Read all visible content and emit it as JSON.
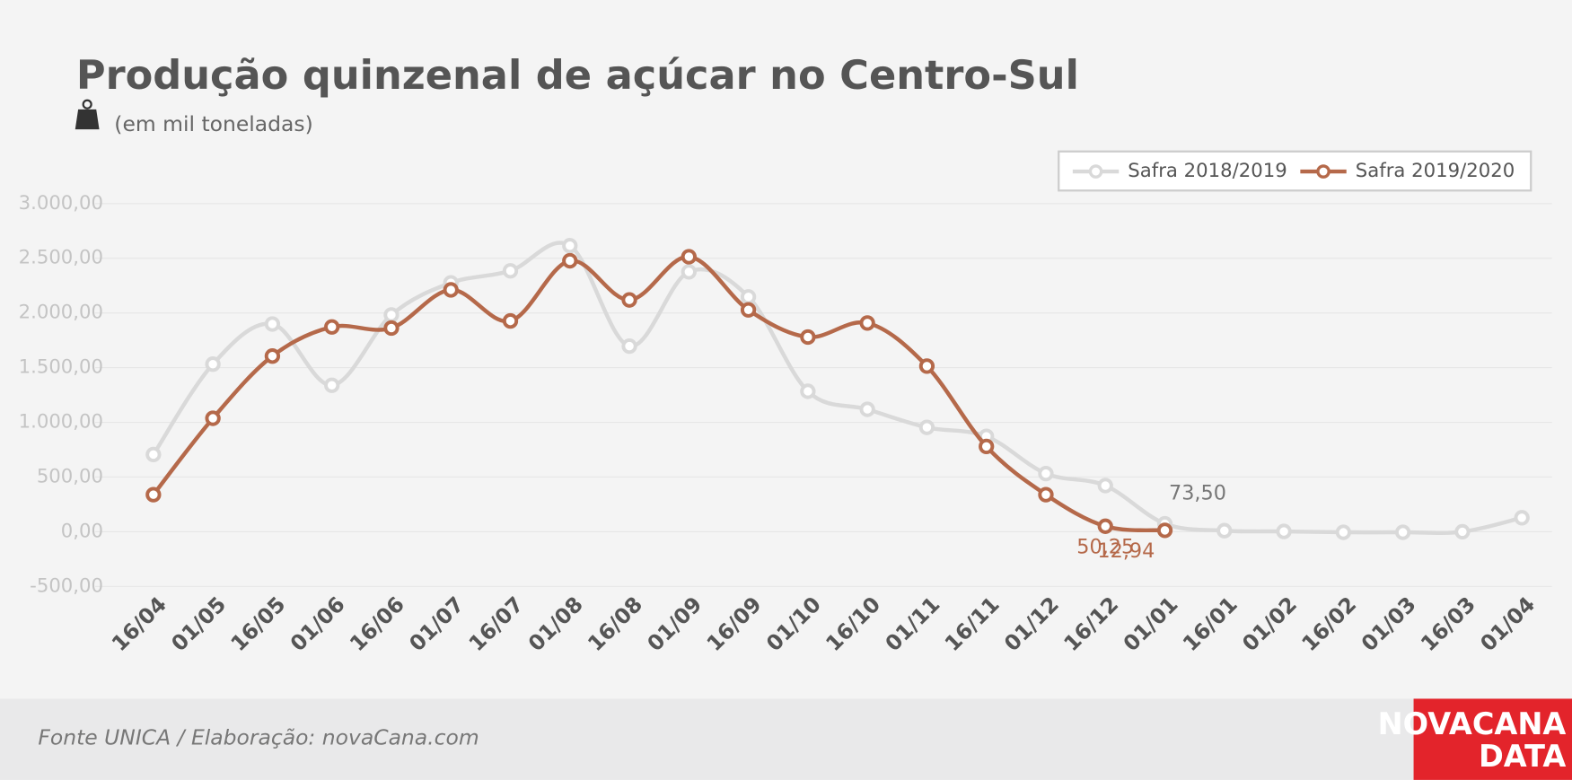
{
  "chart_data": {
    "type": "line",
    "title": "Produção quinzenal de açúcar no Centro-Sul",
    "subtitle": "(em mil toneladas)",
    "categories": [
      "16/04",
      "01/05",
      "16/05",
      "01/06",
      "16/06",
      "01/07",
      "16/07",
      "01/08",
      "16/08",
      "01/09",
      "16/09",
      "01/10",
      "16/10",
      "01/11",
      "16/11",
      "01/12",
      "16/12",
      "01/01",
      "16/01",
      "01/02",
      "16/02",
      "01/03",
      "16/03",
      "01/04"
    ],
    "series": [
      {
        "name": "Safra 2018/2019",
        "color": "#d9d9d9",
        "values": [
          706,
          1532,
          1899,
          1339,
          1982,
          2275,
          2385,
          2615,
          1697,
          2376,
          2147,
          1284,
          1119,
          954,
          872,
          532,
          422,
          73.5,
          10,
          3,
          -5,
          -5,
          0,
          128
        ],
        "value_labels": [
          null,
          null,
          null,
          null,
          null,
          null,
          null,
          null,
          null,
          null,
          null,
          null,
          null,
          null,
          null,
          null,
          null,
          "73,50",
          null,
          null,
          null,
          null,
          null,
          null
        ]
      },
      {
        "name": "Safra 2019/2020",
        "color": "#b5694a",
        "values": [
          339,
          1037,
          1606,
          1872,
          1862,
          2211,
          1927,
          2477,
          2119,
          2514,
          2028,
          1780,
          1908,
          1514,
          780,
          339,
          50.25,
          12.94,
          null,
          null,
          null,
          null,
          null,
          null
        ],
        "value_labels": [
          null,
          null,
          null,
          null,
          null,
          null,
          null,
          null,
          null,
          null,
          null,
          null,
          null,
          null,
          null,
          null,
          "50,25",
          "12,94",
          null,
          null,
          null,
          null,
          null,
          null
        ]
      }
    ],
    "ylim": [
      -500,
      3000
    ],
    "yticks": [
      {
        "value": -500,
        "label": "-500,00"
      },
      {
        "value": 0,
        "label": "0,00"
      },
      {
        "value": 500,
        "label": "500,00"
      },
      {
        "value": 1000,
        "label": "1.000,00"
      },
      {
        "value": 1500,
        "label": "1.500,00"
      },
      {
        "value": 2000,
        "label": "2.000,00"
      },
      {
        "value": 2500,
        "label": "2.500,00"
      },
      {
        "value": 3000,
        "label": "3.000,00"
      }
    ],
    "grid": true,
    "legend": "top-right"
  },
  "footer": {
    "source": "Fonte UNICA / Elaboração: novaCana.com",
    "logo": [
      "NOVACANA",
      "DATA"
    ]
  }
}
